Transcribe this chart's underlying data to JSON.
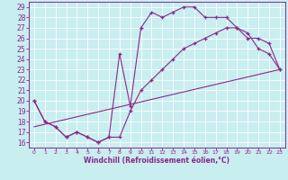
{
  "xlabel": "Windchill (Refroidissement éolien,°C)",
  "bg_color": "#c8eef0",
  "line_color": "#8b2889",
  "xlim": [
    -0.5,
    23.5
  ],
  "ylim": [
    15.5,
    29.5
  ],
  "xticks": [
    0,
    1,
    2,
    3,
    4,
    5,
    6,
    7,
    8,
    9,
    10,
    11,
    12,
    13,
    14,
    15,
    16,
    17,
    18,
    19,
    20,
    21,
    22,
    23
  ],
  "yticks": [
    16,
    17,
    18,
    19,
    20,
    21,
    22,
    23,
    24,
    25,
    26,
    27,
    28,
    29
  ],
  "line1_x": [
    0,
    1,
    2,
    3,
    4,
    5,
    6,
    7,
    8,
    9,
    10,
    11,
    12,
    13,
    14,
    15,
    16,
    17,
    18,
    19,
    20,
    21,
    22,
    23
  ],
  "line1_y": [
    20,
    18,
    17.5,
    16.5,
    17,
    16.5,
    16,
    16.5,
    24.5,
    19.5,
    27,
    28.5,
    28,
    28.5,
    29,
    29,
    28,
    28,
    28,
    27,
    26.5,
    25,
    24.5,
    23
  ],
  "line2_x": [
    0,
    1,
    2,
    3,
    4,
    5,
    6,
    7,
    8,
    9,
    10,
    11,
    12,
    13,
    14,
    15,
    16,
    17,
    18,
    19,
    20,
    21,
    22,
    23
  ],
  "line2_y": [
    20,
    18,
    17.5,
    16.5,
    17,
    16.5,
    16,
    16.5,
    16.5,
    19,
    21,
    22,
    23,
    24,
    25,
    25.5,
    26,
    26.5,
    27,
    27,
    26,
    26,
    25.5,
    23
  ],
  "line3_x": [
    0,
    23
  ],
  "line3_y": [
    17.5,
    23
  ]
}
